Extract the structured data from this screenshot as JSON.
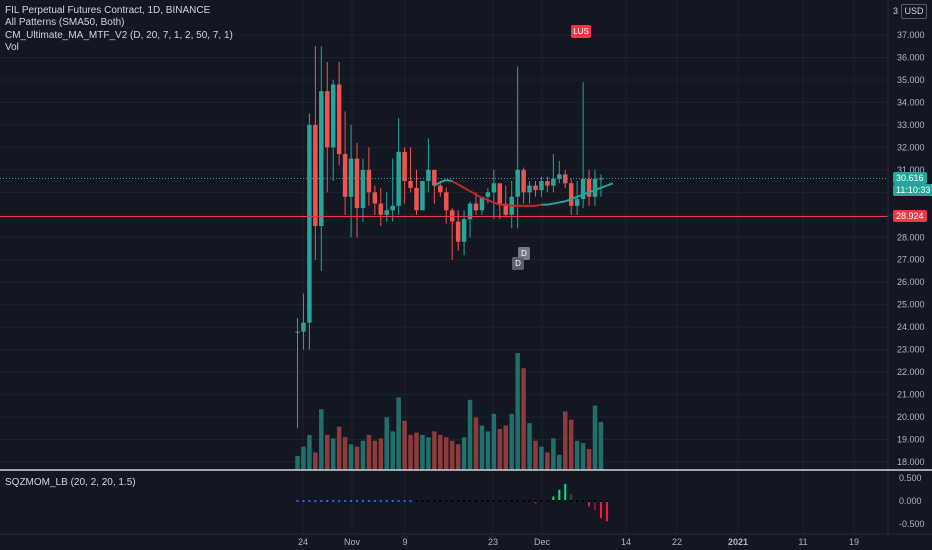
{
  "legend": {
    "title": "FIL Perpetual Futures Contract, 1D, BINANCE",
    "patterns": "All Patterns (SMA50, Both)",
    "ma": "CM_Ultimate_MA_MTF_V2 (D, 20, 7, 1, 2, 50, 7, 1)",
    "vol": "Vol"
  },
  "indicator_label": "SQZMOM_LB (20, 2, 20, 1.5)",
  "currency": "USD",
  "currency_number": "3",
  "price_tags": {
    "last": "30.616",
    "countdown": "11:10:33",
    "line": "28.924"
  },
  "pattern_flags": {
    "upper": "LUS",
    "lower_1": "D",
    "lower_2": "D"
  },
  "colors": {
    "up": "#26a69a",
    "down": "#ef5350",
    "vol_up": "#1f6f6a",
    "vol_down": "#8c3a3c",
    "background": "#131722",
    "red_line": "#f23645",
    "ma_green": "#26a69a",
    "ma_red": "#c62828",
    "sqz_dark_red": "#880e4f",
    "sqz_red": "#ff1744",
    "sqz_green": "#00e676",
    "sqz_dark_green": "#1b5e20",
    "dot_blue": "#2962ff",
    "dot_black": "#000000"
  },
  "chart_data": {
    "type": "candlestick",
    "x_labels": [
      "24",
      "Nov",
      "9",
      "23",
      "Dec",
      "14",
      "22",
      "2021",
      "11",
      "19"
    ],
    "y_ticks": [
      "37.000",
      "36.000",
      "35.000",
      "34.000",
      "33.000",
      "32.000",
      "31.000",
      "30.000",
      "29.000",
      "28.000",
      "27.000",
      "26.000",
      "25.000",
      "24.000",
      "23.000",
      "22.000",
      "21.000",
      "20.000",
      "19.000",
      "18.000"
    ],
    "ylim": [
      17.9,
      38.0
    ],
    "indicator_ticks": [
      "0.500",
      "0.000",
      "-0.500"
    ],
    "horizontal_line": 28.924,
    "last_price": 30.616,
    "candles": [
      {
        "o": 23.8,
        "h": 24.4,
        "l": 19.5,
        "c": 23.8
      },
      {
        "o": 23.8,
        "h": 25.5,
        "l": 23.0,
        "c": 24.2
      },
      {
        "o": 24.2,
        "h": 33.5,
        "l": 23.0,
        "c": 33.0
      },
      {
        "o": 33.0,
        "h": 36.5,
        "l": 27.0,
        "c": 28.5
      },
      {
        "o": 28.5,
        "h": 36.5,
        "l": 26.5,
        "c": 34.5
      },
      {
        "o": 34.5,
        "h": 35.8,
        "l": 30.0,
        "c": 32.0
      },
      {
        "o": 32.0,
        "h": 35.0,
        "l": 30.5,
        "c": 34.8
      },
      {
        "o": 34.8,
        "h": 35.8,
        "l": 31.2,
        "c": 31.7
      },
      {
        "o": 31.7,
        "h": 33.6,
        "l": 29.0,
        "c": 29.8
      },
      {
        "o": 29.8,
        "h": 33.0,
        "l": 28.0,
        "c": 31.5
      },
      {
        "o": 31.5,
        "h": 32.2,
        "l": 28.0,
        "c": 29.3
      },
      {
        "o": 29.3,
        "h": 31.5,
        "l": 28.7,
        "c": 31.0
      },
      {
        "o": 31.0,
        "h": 32.0,
        "l": 29.4,
        "c": 30.0
      },
      {
        "o": 30.0,
        "h": 30.3,
        "l": 29.0,
        "c": 29.5
      },
      {
        "o": 29.5,
        "h": 30.2,
        "l": 28.5,
        "c": 29.0
      },
      {
        "o": 29.0,
        "h": 30.0,
        "l": 28.7,
        "c": 29.2
      },
      {
        "o": 29.2,
        "h": 31.5,
        "l": 28.7,
        "c": 29.4
      },
      {
        "o": 29.4,
        "h": 33.3,
        "l": 29.0,
        "c": 31.8
      },
      {
        "o": 31.8,
        "h": 32.0,
        "l": 29.5,
        "c": 30.5
      },
      {
        "o": 30.5,
        "h": 32.0,
        "l": 30.0,
        "c": 30.2
      },
      {
        "o": 30.2,
        "h": 31.0,
        "l": 29.0,
        "c": 29.2
      },
      {
        "o": 29.2,
        "h": 30.5,
        "l": 29.3,
        "c": 30.5
      },
      {
        "o": 30.5,
        "h": 32.4,
        "l": 30.0,
        "c": 31.0
      },
      {
        "o": 31.0,
        "h": 31.0,
        "l": 29.5,
        "c": 30.3
      },
      {
        "o": 30.3,
        "h": 30.5,
        "l": 29.8,
        "c": 30.0
      },
      {
        "o": 30.0,
        "h": 30.2,
        "l": 28.6,
        "c": 29.2
      },
      {
        "o": 29.2,
        "h": 29.3,
        "l": 27.0,
        "c": 28.7
      },
      {
        "o": 28.7,
        "h": 29.2,
        "l": 27.4,
        "c": 27.8
      },
      {
        "o": 27.8,
        "h": 29.2,
        "l": 27.2,
        "c": 28.8
      },
      {
        "o": 28.8,
        "h": 29.6,
        "l": 28.0,
        "c": 29.5
      },
      {
        "o": 29.5,
        "h": 30.0,
        "l": 29.0,
        "c": 29.2
      },
      {
        "o": 29.2,
        "h": 29.8,
        "l": 29.0,
        "c": 29.8
      },
      {
        "o": 29.8,
        "h": 30.2,
        "l": 29.5,
        "c": 30.0
      },
      {
        "o": 30.0,
        "h": 31.0,
        "l": 28.8,
        "c": 30.4
      },
      {
        "o": 30.4,
        "h": 30.4,
        "l": 28.8,
        "c": 29.5
      },
      {
        "o": 29.5,
        "h": 30.3,
        "l": 28.9,
        "c": 29.0
      },
      {
        "o": 29.0,
        "h": 30.5,
        "l": 28.4,
        "c": 29.8
      },
      {
        "o": 29.8,
        "h": 35.6,
        "l": 28.4,
        "c": 31.0
      },
      {
        "o": 31.0,
        "h": 31.1,
        "l": 29.5,
        "c": 30.0
      },
      {
        "o": 30.0,
        "h": 30.5,
        "l": 29.5,
        "c": 30.3
      },
      {
        "o": 30.3,
        "h": 30.5,
        "l": 29.8,
        "c": 30.1
      },
      {
        "o": 30.1,
        "h": 30.7,
        "l": 29.8,
        "c": 30.5
      },
      {
        "o": 30.5,
        "h": 30.7,
        "l": 30.0,
        "c": 30.3
      },
      {
        "o": 30.3,
        "h": 31.7,
        "l": 30.0,
        "c": 30.6
      },
      {
        "o": 30.6,
        "h": 31.4,
        "l": 30.4,
        "c": 30.8
      },
      {
        "o": 30.8,
        "h": 31.0,
        "l": 30.2,
        "c": 30.4
      },
      {
        "o": 30.4,
        "h": 30.6,
        "l": 29.0,
        "c": 29.4
      },
      {
        "o": 29.4,
        "h": 30.5,
        "l": 29.0,
        "c": 29.7
      },
      {
        "o": 29.7,
        "h": 34.9,
        "l": 29.3,
        "c": 30.6
      },
      {
        "o": 30.6,
        "h": 31.0,
        "l": 29.4,
        "c": 29.8
      },
      {
        "o": 29.8,
        "h": 31.0,
        "l": 29.4,
        "c": 30.6
      },
      {
        "o": 30.6,
        "h": 30.8,
        "l": 29.8,
        "c": 30.616
      }
    ],
    "volume_scale_note": "relative",
    "volumes": [
      0.12,
      0.2,
      0.3,
      0.15,
      0.52,
      0.3,
      0.27,
      0.37,
      0.28,
      0.22,
      0.2,
      0.25,
      0.3,
      0.25,
      0.27,
      0.45,
      0.33,
      0.62,
      0.42,
      0.3,
      0.32,
      0.3,
      0.28,
      0.33,
      0.3,
      0.28,
      0.25,
      0.22,
      0.28,
      0.6,
      0.45,
      0.38,
      0.33,
      0.48,
      0.35,
      0.38,
      0.48,
      1.0,
      0.87,
      0.4,
      0.25,
      0.2,
      0.15,
      0.27,
      0.13,
      0.5,
      0.43,
      0.25,
      0.23,
      0.18,
      0.55,
      0.41
    ],
    "ma": [
      null,
      null,
      null,
      null,
      null,
      null,
      null,
      null,
      null,
      null,
      null,
      null,
      null,
      null,
      null,
      null,
      null,
      null,
      null,
      null,
      null,
      null,
      null,
      null,
      null,
      30.3,
      30.45,
      30.55,
      30.5,
      30.35,
      30.2,
      30.05,
      29.9,
      29.75,
      29.65,
      29.55,
      29.45,
      29.45,
      29.4,
      29.4,
      29.4,
      29.4,
      29.4,
      29.45,
      29.45,
      29.5,
      29.55,
      29.6,
      29.7,
      29.8,
      29.9,
      30.0,
      30.1,
      30.2,
      30.3,
      30.4
    ],
    "ma_color_flags": [
      null,
      null,
      null,
      null,
      null,
      null,
      null,
      null,
      null,
      null,
      null,
      null,
      null,
      null,
      null,
      null,
      null,
      null,
      null,
      null,
      null,
      null,
      null,
      null,
      null,
      "up",
      "up",
      "up",
      "up",
      "down",
      "down",
      "down",
      "down",
      "down",
      "down",
      "down",
      "down",
      "down",
      "down",
      "down",
      "down",
      "down",
      "down",
      "down",
      "up",
      "up",
      "up",
      "up",
      "up",
      "up",
      "up",
      "up",
      "up",
      "up",
      "up",
      "up"
    ],
    "squeeze": [
      0,
      0,
      0,
      0,
      0,
      0,
      0,
      0,
      0,
      0,
      0,
      0,
      0,
      0,
      0,
      0,
      0,
      0,
      0,
      0,
      0,
      0,
      0,
      0,
      0,
      0,
      0,
      0,
      0,
      0,
      0,
      0,
      0,
      0,
      0,
      0,
      0,
      0,
      0,
      0,
      -0.05,
      0,
      0,
      0.1,
      0.25,
      0.38,
      0.15,
      0,
      0,
      -0.12,
      -0.2,
      -0.38,
      -0.45
    ],
    "squeeze_colors": [
      "dg",
      "dg",
      "dg",
      "dg",
      "dg",
      "dg",
      "dg",
      "dg",
      "dg",
      "dg",
      "dg",
      "dg",
      "dg",
      "dg",
      "dg",
      "dg",
      "dg",
      "dg",
      "dg",
      "dg",
      "dg",
      "dg",
      "dg",
      "dg",
      "dg",
      "dg",
      "dg",
      "dg",
      "dg",
      "dg",
      "dg",
      "dg",
      "dg",
      "dg",
      "dg",
      "dg",
      "dg",
      "dg",
      "dg",
      "dg",
      "r",
      "dg",
      "dg",
      "g",
      "g",
      "g",
      "dg",
      "dg",
      "dg",
      "r",
      "dr",
      "r",
      "r"
    ]
  }
}
